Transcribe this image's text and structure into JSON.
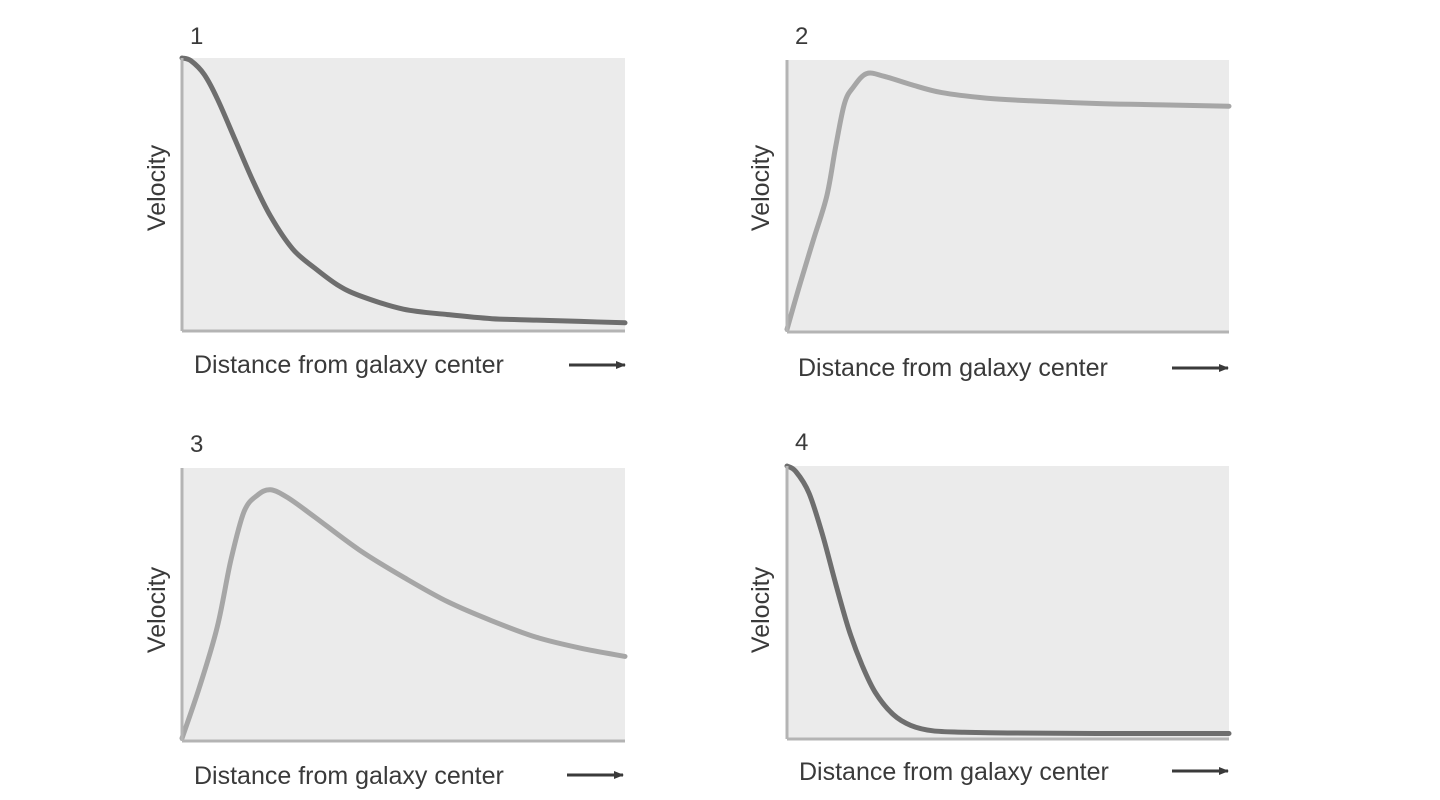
{
  "chart_data": [
    {
      "type": "line",
      "panel_label": "1",
      "xlabel": "Distance from galaxy center",
      "ylabel": "Velocity",
      "xlim": [
        0,
        1
      ],
      "ylim": [
        0,
        1
      ],
      "grid": false,
      "line_color": "#6e6e6e",
      "series": [
        {
          "x": [
            0,
            0.02,
            0.05,
            0.08,
            0.12,
            0.16,
            0.2,
            0.25,
            0.3,
            0.35,
            0.4,
            0.5,
            0.6,
            0.7,
            0.8,
            0.9,
            1.0
          ],
          "values": [
            1.0,
            0.99,
            0.94,
            0.85,
            0.7,
            0.55,
            0.42,
            0.3,
            0.23,
            0.17,
            0.13,
            0.08,
            0.06,
            0.045,
            0.04,
            0.035,
            0.03
          ]
        }
      ]
    },
    {
      "type": "line",
      "panel_label": "2",
      "xlabel": "Distance from galaxy center",
      "ylabel": "Velocity",
      "xlim": [
        0,
        1
      ],
      "ylim": [
        0,
        1
      ],
      "grid": false,
      "line_color": "#a6a6a6",
      "series": [
        {
          "x": [
            0,
            0.03,
            0.06,
            0.09,
            0.11,
            0.13,
            0.15,
            0.18,
            0.22,
            0.28,
            0.35,
            0.45,
            0.55,
            0.7,
            0.85,
            1.0
          ],
          "values": [
            0.01,
            0.18,
            0.34,
            0.5,
            0.68,
            0.84,
            0.9,
            0.95,
            0.94,
            0.91,
            0.88,
            0.86,
            0.85,
            0.84,
            0.835,
            0.83
          ]
        }
      ]
    },
    {
      "type": "line",
      "panel_label": "3",
      "xlabel": "Distance from galaxy center",
      "ylabel": "Velocity",
      "xlim": [
        0,
        1
      ],
      "ylim": [
        0,
        1
      ],
      "grid": false,
      "line_color": "#a6a6a6",
      "series": [
        {
          "x": [
            0,
            0.04,
            0.08,
            0.11,
            0.14,
            0.17,
            0.2,
            0.24,
            0.3,
            0.4,
            0.5,
            0.6,
            0.7,
            0.8,
            0.9,
            1.0
          ],
          "values": [
            0.01,
            0.2,
            0.42,
            0.66,
            0.84,
            0.9,
            0.92,
            0.89,
            0.82,
            0.7,
            0.6,
            0.51,
            0.44,
            0.38,
            0.34,
            0.31
          ]
        }
      ]
    },
    {
      "type": "line",
      "panel_label": "4",
      "xlabel": "Distance from galaxy center",
      "ylabel": "Velocity",
      "xlim": [
        0,
        1
      ],
      "ylim": [
        0,
        1
      ],
      "grid": false,
      "line_color": "#6e6e6e",
      "series": [
        {
          "x": [
            0,
            0.02,
            0.05,
            0.08,
            0.11,
            0.14,
            0.17,
            0.2,
            0.24,
            0.28,
            0.33,
            0.4,
            0.5,
            0.7,
            1.0
          ],
          "values": [
            1.0,
            0.98,
            0.9,
            0.75,
            0.57,
            0.4,
            0.27,
            0.17,
            0.09,
            0.05,
            0.03,
            0.025,
            0.022,
            0.02,
            0.02
          ]
        }
      ]
    }
  ],
  "colors": {
    "background": "#ffffff",
    "plot_area": "#ebebeb",
    "axis": "#b4b4b4",
    "text": "#3a3a3a",
    "arrow": "#3a3a3a"
  }
}
